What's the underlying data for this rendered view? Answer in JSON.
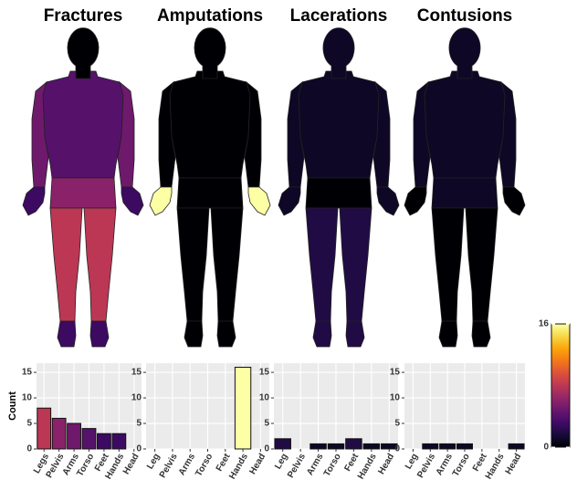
{
  "chart_data": [
    {
      "type": "bar",
      "title": "Fractures",
      "ylabel": "Count",
      "categories": [
        "Legs",
        "Pelvis",
        "Arms",
        "Torso",
        "Feet",
        "Hands",
        "Head"
      ],
      "values": [
        8,
        6,
        5,
        4,
        3,
        3,
        0
      ],
      "ylim": [
        0,
        16.8
      ],
      "yticks": [
        0,
        5,
        10,
        15
      ],
      "grid": true,
      "colormap": "inferno"
    },
    {
      "type": "bar",
      "title": "Amputations",
      "categories": [
        "Leg",
        "Pelvis",
        "Arms",
        "Torso",
        "Feet",
        "Hands",
        "Head"
      ],
      "values": [
        0,
        0,
        0,
        0,
        0,
        16,
        0
      ],
      "ylim": [
        0,
        16.8
      ],
      "yticks": [
        0,
        5,
        10,
        15
      ],
      "grid": true,
      "colormap": "inferno"
    },
    {
      "type": "bar",
      "title": "Lacerations",
      "categories": [
        "Leg",
        "Pelvis",
        "Arms",
        "Torso",
        "Feet",
        "Hands",
        "Head"
      ],
      "values": [
        2,
        0,
        1,
        1,
        2,
        1,
        1
      ],
      "ylim": [
        0,
        16.8
      ],
      "yticks": [
        0,
        5,
        10,
        15
      ],
      "grid": true,
      "colormap": "inferno"
    },
    {
      "type": "bar",
      "title": "Contusions",
      "categories": [
        "Leg",
        "Pelvis",
        "Arms",
        "Torso",
        "Feet",
        "Hands",
        "Head"
      ],
      "values": [
        0,
        1,
        1,
        1,
        0,
        0,
        1
      ],
      "ylim": [
        0,
        16.8
      ],
      "yticks": [
        0,
        5,
        10,
        15
      ],
      "grid": true,
      "colormap": "inferno"
    },
    {
      "type": "colorbar",
      "colormap": "inferno",
      "ylim": [
        0,
        16
      ],
      "yticks": [
        0,
        16
      ]
    }
  ]
}
